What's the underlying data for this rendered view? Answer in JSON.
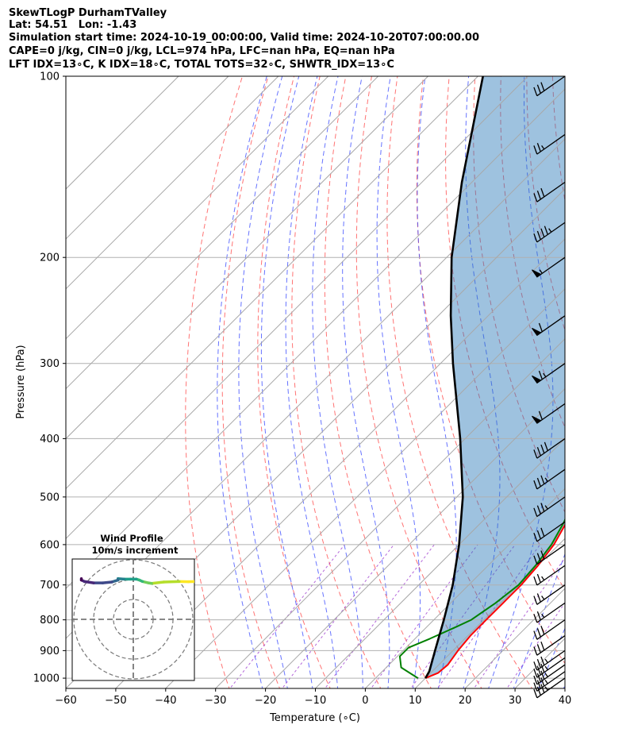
{
  "header": {
    "line1": "SkewTLogP DurhamTValley",
    "line2": "Lat: 54.51   Lon: -1.43",
    "line3": "Simulation start time: 2024-10-19_00:00:00, Valid time: 2024-10-20T07:00:00.00",
    "line4": "CAPE=0 j/kg, CIN=0 j/kg, LCL=974 hPa, LFC=nan hPa, EQ=nan hPa",
    "line5": "LFT IDX=13∘C, K IDX=18∘C, TOTAL TOTS=32∘C, SHWTR_IDX=13∘C"
  },
  "chart_data": {
    "type": "line",
    "xlabel": "Temperature (∘C)",
    "ylabel": "Pressure (hPa)",
    "xlim": [
      -60,
      40
    ],
    "ylim": [
      1040,
      100
    ],
    "y_scale": "log",
    "skew": "45 degrees",
    "grid": true,
    "x_ticks": [
      -60,
      -50,
      -40,
      -30,
      -20,
      -10,
      0,
      10,
      20,
      30,
      40
    ],
    "y_ticks": [
      1000,
      900,
      800,
      700,
      600,
      500,
      400,
      300,
      200,
      100
    ],
    "series": [
      {
        "color": "#ff0000",
        "points": [
          [
            1000,
            10.0
          ],
          [
            980,
            11.5
          ],
          [
            950,
            11.8
          ],
          [
            900,
            11.0
          ],
          [
            850,
            10.5
          ],
          [
            800,
            10.5
          ],
          [
            750,
            10.5
          ],
          [
            700,
            10.5
          ],
          [
            650,
            10.0
          ],
          [
            600,
            9.0
          ],
          [
            550,
            7.0
          ],
          [
            500,
            4.5
          ],
          [
            450,
            1.5
          ],
          [
            400,
            -2.5
          ],
          [
            370,
            -4.0
          ],
          [
            340,
            -4.0
          ],
          [
            310,
            -4.0
          ],
          [
            290,
            -5.0
          ],
          [
            270,
            -7.0
          ],
          [
            250,
            -10.0
          ],
          [
            230,
            -13.0
          ],
          [
            210,
            -16.0
          ],
          [
            200,
            -17.0
          ],
          [
            190,
            -15.5
          ],
          [
            180,
            -16.0
          ],
          [
            170,
            -18.0
          ],
          [
            160,
            -21.0
          ],
          [
            150,
            -24.0
          ],
          [
            140,
            -27.0
          ],
          [
            130,
            -31.0
          ],
          [
            125,
            -33.0
          ],
          [
            120,
            -36.0
          ],
          [
            115,
            -38.0
          ],
          [
            110,
            -42.0
          ],
          [
            100,
            -48.0
          ]
        ]
      },
      {
        "color": "#008000",
        "points": [
          [
            1000,
            8.5
          ],
          [
            960,
            3.0
          ],
          [
            920,
            0.5
          ],
          [
            890,
            0.5
          ],
          [
            860,
            3.0
          ],
          [
            820,
            6.0
          ],
          [
            800,
            7.5
          ],
          [
            750,
            9.0
          ],
          [
            700,
            10.0
          ],
          [
            650,
            9.5
          ],
          [
            600,
            8.5
          ],
          [
            550,
            6.5
          ],
          [
            500,
            3.5
          ],
          [
            450,
            0.0
          ],
          [
            400,
            -4.5
          ],
          [
            370,
            -6.0
          ],
          [
            340,
            -7.5
          ],
          [
            310,
            -8.5
          ],
          [
            280,
            -11.0
          ],
          [
            260,
            -15.0
          ],
          [
            240,
            -19.0
          ],
          [
            220,
            -22.5
          ],
          [
            200,
            -25.0
          ],
          [
            190,
            -24.0
          ],
          [
            180,
            -23.0
          ],
          [
            170,
            -25.5
          ],
          [
            160,
            -30.0
          ],
          [
            150,
            -36.0
          ],
          [
            140,
            -39.0
          ],
          [
            130,
            -42.0
          ],
          [
            120,
            -48.0
          ],
          [
            110,
            -54.5
          ],
          [
            100,
            -60.5
          ]
        ]
      },
      {
        "color": "#000000",
        "points": [
          [
            1000,
            10.0
          ],
          [
            974,
            9.4
          ],
          [
            900,
            6.4
          ],
          [
            800,
            2.0
          ],
          [
            700,
            -3.2
          ],
          [
            600,
            -10.0
          ],
          [
            500,
            -18.8
          ],
          [
            400,
            -31.0
          ],
          [
            300,
            -47.5
          ],
          [
            250,
            -57.5
          ],
          [
            200,
            -69.0
          ],
          [
            150,
            -82.0
          ],
          [
            100,
            -99.0
          ]
        ]
      }
    ],
    "wind_barbs": [
      {
        "p": 1000,
        "knots": 35
      },
      {
        "p": 975,
        "knots": 35
      },
      {
        "p": 950,
        "knots": 35
      },
      {
        "p": 925,
        "knots": 35
      },
      {
        "p": 900,
        "knots": 35
      },
      {
        "p": 850,
        "knots": 30
      },
      {
        "p": 800,
        "knots": 30
      },
      {
        "p": 750,
        "knots": 25
      },
      {
        "p": 700,
        "knots": 25
      },
      {
        "p": 650,
        "knots": 25
      },
      {
        "p": 600,
        "knots": 30
      },
      {
        "p": 550,
        "knots": 30
      },
      {
        "p": 500,
        "knots": 35
      },
      {
        "p": 450,
        "knots": 35
      },
      {
        "p": 400,
        "knots": 40
      },
      {
        "p": 350,
        "knots": 60
      },
      {
        "p": 300,
        "knots": 65
      },
      {
        "p": 250,
        "knots": 60
      },
      {
        "p": 200,
        "knots": 55
      },
      {
        "p": 175,
        "knots": 45
      },
      {
        "p": 150,
        "knots": 30
      },
      {
        "p": 125,
        "knots": 25
      },
      {
        "p": 100,
        "knots": 30
      }
    ],
    "hodograph": {
      "title": "Wind Profile",
      "subtitle": "10m/s increment",
      "rings": 3,
      "colormap": "viridis",
      "points": [
        [
          10,
          2.0
        ],
        [
          9.0,
          2.2
        ],
        [
          7.5,
          2.0
        ],
        [
          5.0,
          2.5
        ],
        [
          3.0,
          4.0
        ],
        [
          2.5,
          3.5
        ],
        [
          1.5,
          2.0
        ],
        [
          1.0,
          0.5
        ],
        [
          0.5,
          -0.5
        ],
        [
          -0.5,
          -0.5
        ],
        [
          -1.5,
          -0.5
        ],
        [
          -2.5,
          -1.0
        ],
        [
          -2.5,
          0.5
        ],
        [
          -3.0,
          1.5
        ],
        [
          -3.5,
          2.5
        ],
        [
          -5.0,
          3.5
        ],
        [
          -6.5,
          3.5
        ],
        [
          -8.0,
          2.0
        ],
        [
          -8.5,
          0.5
        ],
        [
          -8.5,
          -1.0
        ]
      ]
    }
  }
}
